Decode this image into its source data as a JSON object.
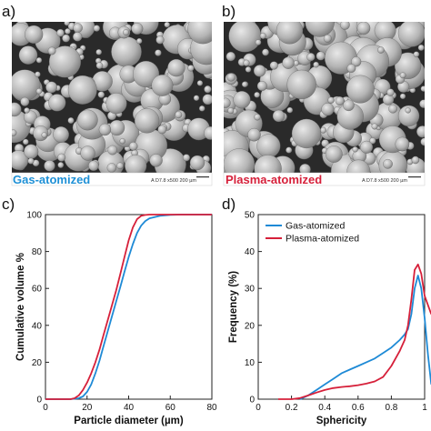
{
  "panels": {
    "a": {
      "letter": "a)",
      "caption": "Gas-atomized",
      "caption_color": "#1e90d6"
    },
    "b": {
      "letter": "b)",
      "caption": "Plasma-atomized",
      "caption_color": "#d6203a"
    },
    "c": {
      "letter": "c)"
    },
    "d": {
      "letter": "d)"
    }
  },
  "micrographs": {
    "a": {
      "scale_meta": "A    D7.8   x500    200 µm"
    },
    "b": {
      "scale_meta": "A    D7.8   x500    200 µm"
    }
  },
  "colors": {
    "gas": "#1e8ad6",
    "plasma": "#d6203a"
  },
  "chart_data": [
    {
      "type": "line",
      "xlabel": "Particle diameter (µm)",
      "ylabel": "Cumulative volume %",
      "xlim": [
        0,
        80
      ],
      "ylim": [
        0,
        100
      ],
      "xticks": [
        0,
        20,
        40,
        60,
        80
      ],
      "yticks": [
        0,
        20,
        40,
        60,
        80,
        100
      ],
      "grid": false,
      "series": [
        {
          "name": "Gas-atomized",
          "color": "#1e8ad6",
          "x": [
            0,
            12,
            16,
            18,
            20,
            22,
            24,
            26,
            28,
            30,
            32,
            34,
            36,
            38,
            40,
            42,
            44,
            46,
            48,
            50,
            55,
            60,
            65,
            70,
            80
          ],
          "y": [
            0,
            0,
            0.5,
            1.5,
            4,
            8,
            14,
            21,
            29,
            37,
            45,
            53,
            61,
            69,
            77,
            84,
            90,
            94,
            96.5,
            98,
            99.3,
            99.8,
            100,
            100,
            100
          ]
        },
        {
          "name": "Plasma-atomized",
          "color": "#d6203a",
          "x": [
            0,
            12,
            14,
            16,
            18,
            20,
            22,
            24,
            26,
            28,
            30,
            32,
            34,
            36,
            38,
            40,
            42,
            44,
            46,
            48,
            50,
            55,
            60,
            70,
            80
          ],
          "y": [
            0,
            0,
            0.5,
            2,
            5,
            9,
            14,
            20,
            27,
            35,
            43,
            51,
            59,
            68,
            77,
            86,
            93,
            97.5,
            99.3,
            99.8,
            100,
            100,
            100,
            100,
            100
          ]
        }
      ]
    },
    {
      "type": "line",
      "xlabel": "Sphericity",
      "ylabel": "Frequency (%)",
      "xlim": [
        0,
        1
      ],
      "ylim": [
        0,
        50
      ],
      "xticks": [
        0,
        0.2,
        0.4,
        0.6,
        0.8,
        1
      ],
      "yticks": [
        0,
        10,
        20,
        30,
        40,
        50
      ],
      "grid": false,
      "legend": "top-left",
      "series": [
        {
          "name": "Gas-atomized",
          "color": "#1e8ad6",
          "x": [
            0.25,
            0.3,
            0.35,
            0.4,
            0.45,
            0.5,
            0.55,
            0.6,
            0.65,
            0.7,
            0.75,
            0.8,
            0.85,
            0.88,
            0.9,
            0.92,
            0.94,
            0.96,
            0.98,
            1.0,
            1.02,
            1.04
          ],
          "y": [
            0,
            1,
            2.5,
            4,
            5.5,
            7,
            8,
            9,
            10,
            11,
            12.5,
            14,
            16,
            17.5,
            19,
            23,
            30,
            33.5,
            30,
            22,
            12,
            4
          ]
        },
        {
          "name": "Plasma-atomized",
          "color": "#d6203a",
          "x": [
            0.12,
            0.2,
            0.25,
            0.3,
            0.35,
            0.4,
            0.45,
            0.5,
            0.55,
            0.6,
            0.65,
            0.7,
            0.75,
            0.8,
            0.85,
            0.88,
            0.9,
            0.92,
            0.94,
            0.96,
            0.98,
            1.0,
            1.04
          ],
          "y": [
            0,
            0,
            0.3,
            1,
            1.8,
            2.5,
            3,
            3.3,
            3.5,
            3.8,
            4.2,
            4.8,
            6,
            9,
            13,
            16,
            20,
            27,
            35,
            36.5,
            34,
            28,
            23
          ]
        }
      ]
    }
  ]
}
